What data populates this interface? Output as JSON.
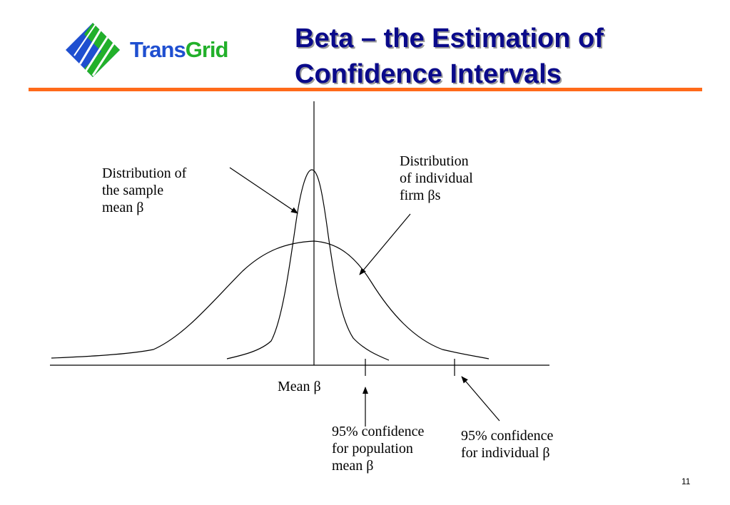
{
  "logo": {
    "text_part1": "Trans",
    "text_part2": "Grid",
    "colors": {
      "blue": "#1f4fd0",
      "green": "#22b02a"
    }
  },
  "header": {
    "title_line1": "Beta – the Estimation of",
    "title_line2": "Confidence Intervals",
    "title_color": "#0a0a8a",
    "rule_color": "#ff6a1a"
  },
  "labels": {
    "sample_mean": [
      "Distribution of",
      "the sample",
      "mean β"
    ],
    "individual_firm": [
      "Distribution",
      "of individual",
      "firm βs"
    ],
    "mean_beta": "Mean β",
    "ci_population": [
      "95% confidence",
      "for population",
      "mean β"
    ],
    "ci_individual": [
      "95% confidence",
      "for individual β"
    ]
  },
  "page_number": "11"
}
